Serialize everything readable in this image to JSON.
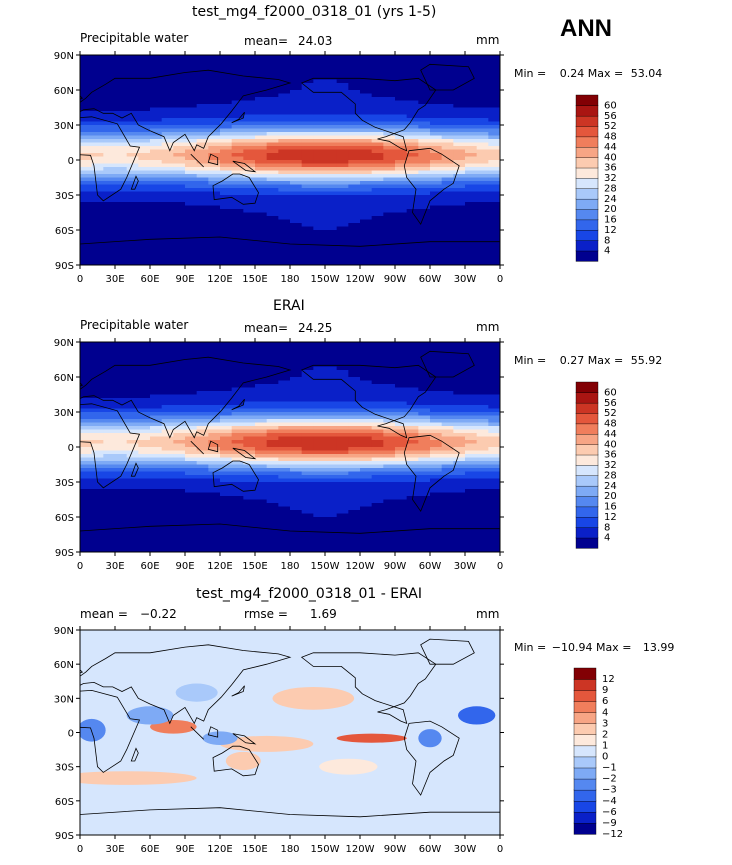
{
  "season_label": "ANN",
  "colors": {
    "pw_levels": [
      "#00008f",
      "#0a20c8",
      "#1846e6",
      "#3266ec",
      "#5588f0",
      "#7eaaf5",
      "#a9c9fa",
      "#d6e6fd",
      "#fde9dc",
      "#fccbb0",
      "#f7a585",
      "#f07e5c",
      "#e4573c",
      "#cc3524",
      "#a91512",
      "#820004"
    ],
    "diff_levels": [
      "#00008f",
      "#0a20c8",
      "#1846e6",
      "#3266ec",
      "#5588f0",
      "#7eaaf5",
      "#a9c9fa",
      "#d6e6fd",
      "#fde9dc",
      "#fccbb0",
      "#f7a585",
      "#f07e5c",
      "#e4573c",
      "#cc3524",
      "#820004"
    ],
    "land": "#000000"
  },
  "chart_data": [
    {
      "type": "heatmap",
      "title": "test_mg4_f2000_0318_01 (yrs 1-5)",
      "left_label": "Precipitable water",
      "mean_label": "mean=",
      "mean": "24.03",
      "units": "mm",
      "min_label": "Min =",
      "min": "0.24",
      "max_label": "Max =",
      "max": "53.04",
      "xticks": [
        "0",
        "30E",
        "60E",
        "90E",
        "120E",
        "150E",
        "180",
        "150W",
        "120W",
        "90W",
        "60W",
        "30W",
        "0"
      ],
      "yticks": [
        "90N",
        "60N",
        "30N",
        "0",
        "30S",
        "60S",
        "90S"
      ],
      "colorbar_ticks": [
        "60",
        "56",
        "52",
        "48",
        "44",
        "40",
        "36",
        "32",
        "28",
        "24",
        "20",
        "16",
        "12",
        "8",
        "4"
      ]
    },
    {
      "type": "heatmap",
      "title": "ERAI",
      "left_label": "Precipitable water",
      "mean_label": "mean=",
      "mean": "24.25",
      "units": "mm",
      "min_label": "Min =",
      "min": "0.27",
      "max_label": "Max =",
      "max": "55.92",
      "xticks": [
        "0",
        "30E",
        "60E",
        "90E",
        "120E",
        "150E",
        "180",
        "150W",
        "120W",
        "90W",
        "60W",
        "30W",
        "0"
      ],
      "yticks": [
        "90N",
        "60N",
        "30N",
        "0",
        "30S",
        "60S",
        "90S"
      ],
      "colorbar_ticks": [
        "60",
        "56",
        "52",
        "48",
        "44",
        "40",
        "36",
        "32",
        "28",
        "24",
        "20",
        "16",
        "12",
        "8",
        "4"
      ]
    },
    {
      "type": "heatmap",
      "title": "test_mg4_f2000_0318_01 - ERAI",
      "left_label": "mean =",
      "mean": "−0.22",
      "rmse_label": "rmse =",
      "rmse": "1.69",
      "units": "mm",
      "min_label": "Min =",
      "min": "−10.94",
      "max_label": "Max =",
      "max": "13.99",
      "xticks": [
        "0",
        "30E",
        "60E",
        "90E",
        "120E",
        "150E",
        "180",
        "150W",
        "120W",
        "90W",
        "60W",
        "30W",
        "0"
      ],
      "yticks": [
        "90N",
        "60N",
        "30N",
        "0",
        "30S",
        "60S",
        "90S"
      ],
      "colorbar_ticks": [
        "12",
        "9",
        "6",
        "4",
        "3",
        "2",
        "1",
        "0",
        "−1",
        "−2",
        "−3",
        "−4",
        "−6",
        "−9",
        "−12"
      ]
    }
  ]
}
